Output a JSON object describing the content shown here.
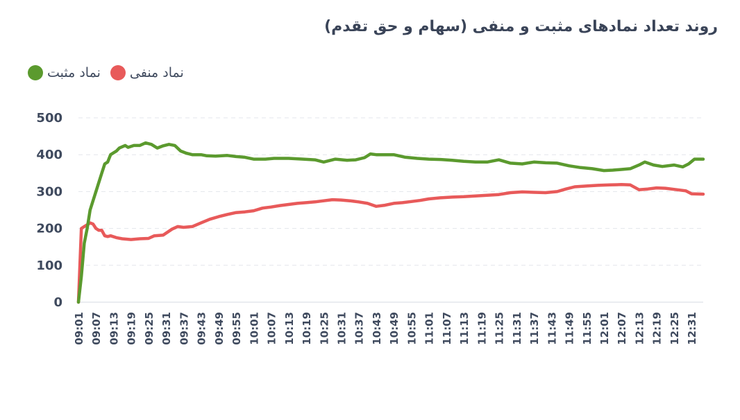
{
  "title": "روند تعداد نمادهای مثبت و منفی (سهام و حق تقدم)",
  "legend": [
    {
      "label": "نماد مثبت",
      "color": "#5b9a2e"
    },
    {
      "label": "نماد منفی",
      "color": "#e85a5a"
    }
  ],
  "chart_data": {
    "type": "line",
    "title": "روند تعداد نمادهای مثبت و منفی (سهام و حق تقدم)",
    "xlabel": "",
    "ylabel": "",
    "ylim": [
      0,
      500
    ],
    "yticks": [
      0,
      100,
      200,
      300,
      400,
      500
    ],
    "grid": true,
    "legend_position": "top-left",
    "x_tick_labels": [
      "09:01",
      "09:07",
      "09:13",
      "09:19",
      "09:25",
      "09:31",
      "09:37",
      "09:43",
      "09:49",
      "09:55",
      "10:01",
      "10:07",
      "10:13",
      "10:19",
      "10:25",
      "10:31",
      "10:37",
      "10:43",
      "10:49",
      "10:55",
      "11:01",
      "11:07",
      "11:13",
      "11:19",
      "11:25",
      "11:31",
      "11:37",
      "11:43",
      "11:49",
      "11:55",
      "12:01",
      "12:07",
      "12:13",
      "12:19",
      "12:25",
      "12:31"
    ],
    "x_start": "09:01",
    "x_end": "12:35",
    "series": [
      {
        "name": "نماد مثبت",
        "color": "#5b9a2e",
        "points": [
          [
            "09:01",
            0
          ],
          [
            "09:02",
            70
          ],
          [
            "09:03",
            160
          ],
          [
            "09:04",
            200
          ],
          [
            "09:05",
            250
          ],
          [
            "09:06",
            275
          ],
          [
            "09:07",
            300
          ],
          [
            "09:08",
            325
          ],
          [
            "09:09",
            350
          ],
          [
            "09:10",
            375
          ],
          [
            "09:11",
            380
          ],
          [
            "09:12",
            400
          ],
          [
            "09:13",
            405
          ],
          [
            "09:14",
            410
          ],
          [
            "09:15",
            418
          ],
          [
            "09:17",
            425
          ],
          [
            "09:18",
            420
          ],
          [
            "09:20",
            425
          ],
          [
            "09:22",
            425
          ],
          [
            "09:24",
            432
          ],
          [
            "09:26",
            428
          ],
          [
            "09:28",
            418
          ],
          [
            "09:30",
            424
          ],
          [
            "09:32",
            428
          ],
          [
            "09:34",
            425
          ],
          [
            "09:36",
            410
          ],
          [
            "09:38",
            404
          ],
          [
            "09:40",
            400
          ],
          [
            "09:43",
            400
          ],
          [
            "09:45",
            397
          ],
          [
            "09:48",
            396
          ],
          [
            "09:52",
            398
          ],
          [
            "09:55",
            395
          ],
          [
            "09:58",
            393
          ],
          [
            "10:01",
            388
          ],
          [
            "10:05",
            388
          ],
          [
            "10:08",
            390
          ],
          [
            "10:13",
            390
          ],
          [
            "10:18",
            388
          ],
          [
            "10:22",
            386
          ],
          [
            "10:25",
            380
          ],
          [
            "10:29",
            388
          ],
          [
            "10:33",
            385
          ],
          [
            "10:36",
            386
          ],
          [
            "10:39",
            392
          ],
          [
            "10:41",
            402
          ],
          [
            "10:43",
            400
          ],
          [
            "10:46",
            400
          ],
          [
            "10:49",
            400
          ],
          [
            "10:53",
            393
          ],
          [
            "10:57",
            390
          ],
          [
            "11:01",
            388
          ],
          [
            "11:05",
            387
          ],
          [
            "11:09",
            385
          ],
          [
            "11:13",
            382
          ],
          [
            "11:17",
            380
          ],
          [
            "11:21",
            380
          ],
          [
            "11:25",
            386
          ],
          [
            "11:29",
            377
          ],
          [
            "11:33",
            375
          ],
          [
            "11:37",
            380
          ],
          [
            "11:41",
            378
          ],
          [
            "11:45",
            377
          ],
          [
            "11:49",
            370
          ],
          [
            "11:53",
            365
          ],
          [
            "11:57",
            362
          ],
          [
            "12:01",
            357
          ],
          [
            "12:04",
            358
          ],
          [
            "12:07",
            360
          ],
          [
            "12:10",
            362
          ],
          [
            "12:13",
            372
          ],
          [
            "12:15",
            380
          ],
          [
            "12:18",
            372
          ],
          [
            "12:21",
            368
          ],
          [
            "12:25",
            372
          ],
          [
            "12:28",
            367
          ],
          [
            "12:30",
            375
          ],
          [
            "12:32",
            388
          ],
          [
            "12:35",
            388
          ]
        ]
      },
      {
        "name": "نماد منفی",
        "color": "#e85a5a",
        "points": [
          [
            "09:01",
            0
          ],
          [
            "09:02",
            200
          ],
          [
            "09:03",
            205
          ],
          [
            "09:04",
            210
          ],
          [
            "09:05",
            215
          ],
          [
            "09:06",
            212
          ],
          [
            "09:07",
            200
          ],
          [
            "09:08",
            195
          ],
          [
            "09:09",
            195
          ],
          [
            "09:10",
            180
          ],
          [
            "09:11",
            178
          ],
          [
            "09:12",
            180
          ],
          [
            "09:14",
            175
          ],
          [
            "09:16",
            172
          ],
          [
            "09:19",
            170
          ],
          [
            "09:22",
            172
          ],
          [
            "09:25",
            173
          ],
          [
            "09:27",
            180
          ],
          [
            "09:30",
            182
          ],
          [
            "09:33",
            198
          ],
          [
            "09:35",
            205
          ],
          [
            "09:37",
            203
          ],
          [
            "09:40",
            205
          ],
          [
            "09:43",
            215
          ],
          [
            "09:46",
            225
          ],
          [
            "09:49",
            232
          ],
          [
            "09:52",
            238
          ],
          [
            "09:55",
            243
          ],
          [
            "09:58",
            245
          ],
          [
            "10:01",
            248
          ],
          [
            "10:04",
            255
          ],
          [
            "10:07",
            258
          ],
          [
            "10:10",
            262
          ],
          [
            "10:13",
            265
          ],
          [
            "10:16",
            268
          ],
          [
            "10:19",
            270
          ],
          [
            "10:22",
            272
          ],
          [
            "10:25",
            275
          ],
          [
            "10:28",
            278
          ],
          [
            "10:31",
            277
          ],
          [
            "10:34",
            275
          ],
          [
            "10:37",
            272
          ],
          [
            "10:40",
            268
          ],
          [
            "10:43",
            260
          ],
          [
            "10:46",
            263
          ],
          [
            "10:49",
            268
          ],
          [
            "10:52",
            270
          ],
          [
            "10:55",
            273
          ],
          [
            "10:58",
            276
          ],
          [
            "11:01",
            280
          ],
          [
            "11:05",
            283
          ],
          [
            "11:09",
            285
          ],
          [
            "11:13",
            286
          ],
          [
            "11:17",
            288
          ],
          [
            "11:21",
            290
          ],
          [
            "11:25",
            292
          ],
          [
            "11:29",
            297
          ],
          [
            "11:33",
            299
          ],
          [
            "11:37",
            298
          ],
          [
            "11:41",
            297
          ],
          [
            "11:45",
            300
          ],
          [
            "11:48",
            307
          ],
          [
            "11:51",
            313
          ],
          [
            "11:55",
            315
          ],
          [
            "11:59",
            317
          ],
          [
            "12:03",
            318
          ],
          [
            "12:07",
            319
          ],
          [
            "12:10",
            318
          ],
          [
            "12:13",
            305
          ],
          [
            "12:16",
            307
          ],
          [
            "12:19",
            310
          ],
          [
            "12:22",
            309
          ],
          [
            "12:25",
            306
          ],
          [
            "12:29",
            302
          ],
          [
            "12:31",
            294
          ],
          [
            "12:35",
            293
          ]
        ]
      }
    ]
  }
}
